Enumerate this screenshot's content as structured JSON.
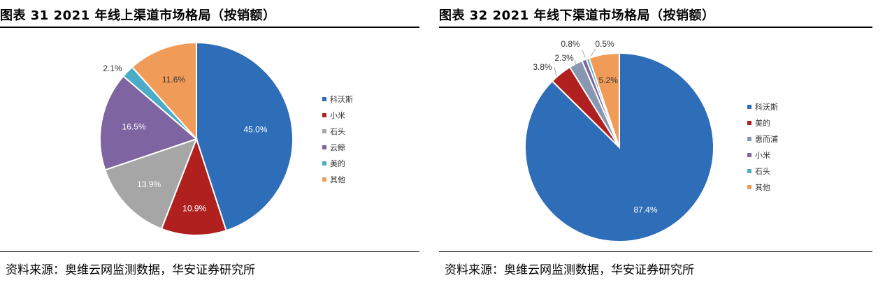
{
  "left": {
    "title": "图表 31 2021 年线上渠道市场格局（按销额）",
    "source": "资料来源：奥维云网监测数据，华安证券研究所"
  },
  "right": {
    "title": "图表 32 2021 年线下渠道市场格局（按销额）",
    "source": "资料来源：奥维云网监测数据，华安证券研究所"
  },
  "chart_data": [
    {
      "type": "pie",
      "title": "图表 31 2021 年线上渠道市场格局（按销额）",
      "unit": "%",
      "legend_position": "right",
      "labels": [
        "科沃斯",
        "小米",
        "石头",
        "云鲸",
        "美的",
        "其他"
      ],
      "values": [
        45.0,
        10.9,
        13.9,
        16.5,
        2.1,
        11.6
      ],
      "value_labels": [
        "45.0%",
        "10.9%",
        "13.9%",
        "16.5%",
        "2.1%",
        "11.6%"
      ],
      "colors": [
        "#2E6DB7",
        "#B0201F",
        "#A6A6A6",
        "#7E64A0",
        "#4AACC6",
        "#F09B57"
      ]
    },
    {
      "type": "pie",
      "title": "图表 32 2021 年线下渠道市场格局（按销额）",
      "unit": "%",
      "legend_position": "right",
      "labels": [
        "科沃斯",
        "美的",
        "惠而浦",
        "小米",
        "石头",
        "其他"
      ],
      "values": [
        87.4,
        3.8,
        2.3,
        0.8,
        0.5,
        5.2
      ],
      "value_labels": [
        "87.4%",
        "3.8%",
        "2.3%",
        "0.8%",
        "0.5%",
        "5.2%"
      ],
      "colors": [
        "#2E6DB7",
        "#B0201F",
        "#8697AF",
        "#7E64A0",
        "#4AACC6",
        "#F09B57"
      ]
    }
  ]
}
